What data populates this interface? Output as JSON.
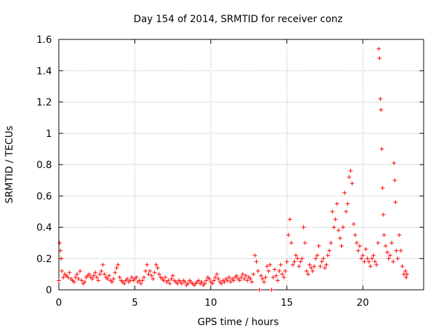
{
  "chart_data": {
    "type": "scatter",
    "title": "Day 154 of 2014, SRMTID for receiver conz",
    "xlabel": "GPS time / hours",
    "ylabel": "SRMTID / TECUs",
    "xlim": [
      0,
      24
    ],
    "ylim": [
      0,
      1.6
    ],
    "xticks": [
      0,
      5,
      10,
      15,
      20
    ],
    "xtick_labels": [
      "0",
      "5",
      "10",
      "15",
      "20"
    ],
    "yticks": [
      0,
      0.2,
      0.4,
      0.6,
      0.8,
      1,
      1.2,
      1.4,
      1.6
    ],
    "ytick_labels": [
      "0",
      "0.2",
      "0.4",
      "0.6",
      "0.8",
      "1",
      "1.2",
      "1.4",
      "1.6"
    ],
    "grid": true,
    "marker": "plus",
    "series": [
      {
        "name": "SRMTID",
        "color": "#ff0000",
        "points": [
          [
            0.0,
            0.06
          ],
          [
            0.05,
            0.3
          ],
          [
            0.1,
            0.25
          ],
          [
            0.15,
            0.2
          ],
          [
            0.2,
            0.12
          ],
          [
            0.3,
            0.08
          ],
          [
            0.4,
            0.1
          ],
          [
            0.5,
            0.09
          ],
          [
            0.6,
            0.08
          ],
          [
            0.7,
            0.11
          ],
          [
            0.8,
            0.07
          ],
          [
            0.9,
            0.06
          ],
          [
            1.0,
            0.05
          ],
          [
            1.1,
            0.08
          ],
          [
            1.2,
            0.1
          ],
          [
            1.3,
            0.07
          ],
          [
            1.4,
            0.12
          ],
          [
            1.5,
            0.06
          ],
          [
            1.6,
            0.04
          ],
          [
            1.7,
            0.05
          ],
          [
            1.8,
            0.08
          ],
          [
            1.9,
            0.09
          ],
          [
            2.0,
            0.1
          ],
          [
            2.1,
            0.08
          ],
          [
            2.2,
            0.07
          ],
          [
            2.3,
            0.09
          ],
          [
            2.4,
            0.11
          ],
          [
            2.5,
            0.08
          ],
          [
            2.6,
            0.06
          ],
          [
            2.7,
            0.1
          ],
          [
            2.8,
            0.12
          ],
          [
            2.9,
            0.16
          ],
          [
            3.0,
            0.1
          ],
          [
            3.1,
            0.08
          ],
          [
            3.2,
            0.07
          ],
          [
            3.3,
            0.09
          ],
          [
            3.4,
            0.06
          ],
          [
            3.5,
            0.05
          ],
          [
            3.6,
            0.07
          ],
          [
            3.7,
            0.11
          ],
          [
            3.8,
            0.14
          ],
          [
            3.9,
            0.16
          ],
          [
            4.0,
            0.08
          ],
          [
            4.1,
            0.06
          ],
          [
            4.2,
            0.05
          ],
          [
            4.3,
            0.04
          ],
          [
            4.4,
            0.06
          ],
          [
            4.5,
            0.07
          ],
          [
            4.6,
            0.05
          ],
          [
            4.7,
            0.06
          ],
          [
            4.8,
            0.08
          ],
          [
            4.9,
            0.06
          ],
          [
            5.0,
            0.07
          ],
          [
            5.1,
            0.08
          ],
          [
            5.2,
            0.05
          ],
          [
            5.3,
            0.06
          ],
          [
            5.4,
            0.04
          ],
          [
            5.5,
            0.06
          ],
          [
            5.6,
            0.08
          ],
          [
            5.7,
            0.12
          ],
          [
            5.8,
            0.16
          ],
          [
            5.9,
            0.1
          ],
          [
            6.0,
            0.12
          ],
          [
            6.1,
            0.09
          ],
          [
            6.2,
            0.07
          ],
          [
            6.3,
            0.11
          ],
          [
            6.4,
            0.16
          ],
          [
            6.5,
            0.14
          ],
          [
            6.6,
            0.1
          ],
          [
            6.7,
            0.08
          ],
          [
            6.8,
            0.07
          ],
          [
            6.9,
            0.06
          ],
          [
            7.0,
            0.08
          ],
          [
            7.1,
            0.05
          ],
          [
            7.2,
            0.06
          ],
          [
            7.3,
            0.04
          ],
          [
            7.4,
            0.07
          ],
          [
            7.5,
            0.09
          ],
          [
            7.6,
            0.06
          ],
          [
            7.7,
            0.05
          ],
          [
            7.8,
            0.04
          ],
          [
            7.9,
            0.06
          ],
          [
            8.0,
            0.05
          ],
          [
            8.1,
            0.04
          ],
          [
            8.2,
            0.06
          ],
          [
            8.3,
            0.05
          ],
          [
            8.4,
            0.03
          ],
          [
            8.5,
            0.04
          ],
          [
            8.6,
            0.06
          ],
          [
            8.7,
            0.05
          ],
          [
            8.8,
            0.04
          ],
          [
            8.9,
            0.03
          ],
          [
            9.0,
            0.04
          ],
          [
            9.1,
            0.05
          ],
          [
            9.2,
            0.06
          ],
          [
            9.3,
            0.04
          ],
          [
            9.4,
            0.05
          ],
          [
            9.5,
            0.03
          ],
          [
            9.6,
            0.04
          ],
          [
            9.7,
            0.06
          ],
          [
            9.8,
            0.08
          ],
          [
            9.9,
            0.07
          ],
          [
            10.0,
            0.05
          ],
          [
            10.1,
            0.04
          ],
          [
            10.2,
            0.06
          ],
          [
            10.3,
            0.08
          ],
          [
            10.4,
            0.1
          ],
          [
            10.5,
            0.07
          ],
          [
            10.6,
            0.05
          ],
          [
            10.7,
            0.04
          ],
          [
            10.8,
            0.06
          ],
          [
            10.9,
            0.05
          ],
          [
            11.0,
            0.07
          ],
          [
            11.1,
            0.06
          ],
          [
            11.2,
            0.08
          ],
          [
            11.3,
            0.05
          ],
          [
            11.4,
            0.07
          ],
          [
            11.5,
            0.06
          ],
          [
            11.6,
            0.08
          ],
          [
            11.7,
            0.09
          ],
          [
            11.8,
            0.07
          ],
          [
            11.9,
            0.06
          ],
          [
            12.0,
            0.08
          ],
          [
            12.1,
            0.1
          ],
          [
            12.2,
            0.07
          ],
          [
            12.3,
            0.09
          ],
          [
            12.4,
            0.06
          ],
          [
            12.5,
            0.08
          ],
          [
            12.6,
            0.07
          ],
          [
            12.7,
            0.05
          ],
          [
            12.8,
            0.1
          ],
          [
            12.9,
            0.22
          ],
          [
            13.0,
            0.18
          ],
          [
            13.1,
            0.12
          ],
          [
            13.2,
            0.0
          ],
          [
            13.3,
            0.09
          ],
          [
            13.4,
            0.07
          ],
          [
            13.5,
            0.05
          ],
          [
            13.6,
            0.08
          ],
          [
            13.7,
            0.15
          ],
          [
            13.8,
            0.12
          ],
          [
            13.9,
            0.16
          ],
          [
            14.0,
            0.0
          ],
          [
            14.1,
            0.08
          ],
          [
            14.2,
            0.13
          ],
          [
            14.3,
            0.09
          ],
          [
            14.4,
            0.06
          ],
          [
            14.5,
            0.12
          ],
          [
            14.6,
            0.16
          ],
          [
            14.7,
            0.1
          ],
          [
            14.8,
            0.08
          ],
          [
            14.9,
            0.12
          ],
          [
            15.0,
            0.18
          ],
          [
            15.1,
            0.35
          ],
          [
            15.2,
            0.45
          ],
          [
            15.3,
            0.3
          ],
          [
            15.4,
            0.16
          ],
          [
            15.5,
            0.18
          ],
          [
            15.6,
            0.22
          ],
          [
            15.7,
            0.2
          ],
          [
            15.8,
            0.15
          ],
          [
            15.9,
            0.18
          ],
          [
            16.0,
            0.2
          ],
          [
            16.1,
            0.4
          ],
          [
            16.2,
            0.3
          ],
          [
            16.3,
            0.12
          ],
          [
            16.4,
            0.1
          ],
          [
            16.5,
            0.16
          ],
          [
            16.6,
            0.14
          ],
          [
            16.7,
            0.12
          ],
          [
            16.8,
            0.15
          ],
          [
            16.9,
            0.2
          ],
          [
            17.0,
            0.22
          ],
          [
            17.1,
            0.28
          ],
          [
            17.2,
            0.15
          ],
          [
            17.3,
            0.18
          ],
          [
            17.4,
            0.2
          ],
          [
            17.5,
            0.14
          ],
          [
            17.6,
            0.16
          ],
          [
            17.7,
            0.22
          ],
          [
            17.8,
            0.25
          ],
          [
            17.9,
            0.3
          ],
          [
            18.0,
            0.5
          ],
          [
            18.1,
            0.4
          ],
          [
            18.2,
            0.45
          ],
          [
            18.3,
            0.55
          ],
          [
            18.4,
            0.38
          ],
          [
            18.5,
            0.33
          ],
          [
            18.6,
            0.28
          ],
          [
            18.7,
            0.4
          ],
          [
            18.8,
            0.62
          ],
          [
            18.9,
            0.5
          ],
          [
            19.0,
            0.55
          ],
          [
            19.1,
            0.72
          ],
          [
            19.2,
            0.76
          ],
          [
            19.3,
            0.68
          ],
          [
            19.4,
            0.42
          ],
          [
            19.5,
            0.35
          ],
          [
            19.6,
            0.3
          ],
          [
            19.7,
            0.25
          ],
          [
            19.8,
            0.28
          ],
          [
            19.9,
            0.2
          ],
          [
            20.0,
            0.22
          ],
          [
            20.1,
            0.18
          ],
          [
            20.2,
            0.26
          ],
          [
            20.3,
            0.2
          ],
          [
            20.4,
            0.18
          ],
          [
            20.5,
            0.15
          ],
          [
            20.6,
            0.2
          ],
          [
            20.7,
            0.22
          ],
          [
            20.8,
            0.18
          ],
          [
            20.9,
            0.16
          ],
          [
            21.0,
            0.3
          ],
          [
            21.05,
            1.54
          ],
          [
            21.1,
            1.48
          ],
          [
            21.15,
            1.22
          ],
          [
            21.2,
            1.15
          ],
          [
            21.25,
            0.9
          ],
          [
            21.3,
            0.65
          ],
          [
            21.35,
            0.48
          ],
          [
            21.4,
            0.35
          ],
          [
            21.5,
            0.28
          ],
          [
            21.6,
            0.24
          ],
          [
            21.7,
            0.2
          ],
          [
            21.8,
            0.22
          ],
          [
            21.9,
            0.3
          ],
          [
            22.0,
            0.18
          ],
          [
            22.05,
            0.81
          ],
          [
            22.1,
            0.7
          ],
          [
            22.15,
            0.56
          ],
          [
            22.2,
            0.25
          ],
          [
            22.3,
            0.2
          ],
          [
            22.4,
            0.35
          ],
          [
            22.5,
            0.25
          ],
          [
            22.6,
            0.15
          ],
          [
            22.7,
            0.1
          ],
          [
            22.8,
            0.12
          ],
          [
            22.85,
            0.08
          ],
          [
            22.9,
            0.1
          ]
        ]
      }
    ]
  }
}
